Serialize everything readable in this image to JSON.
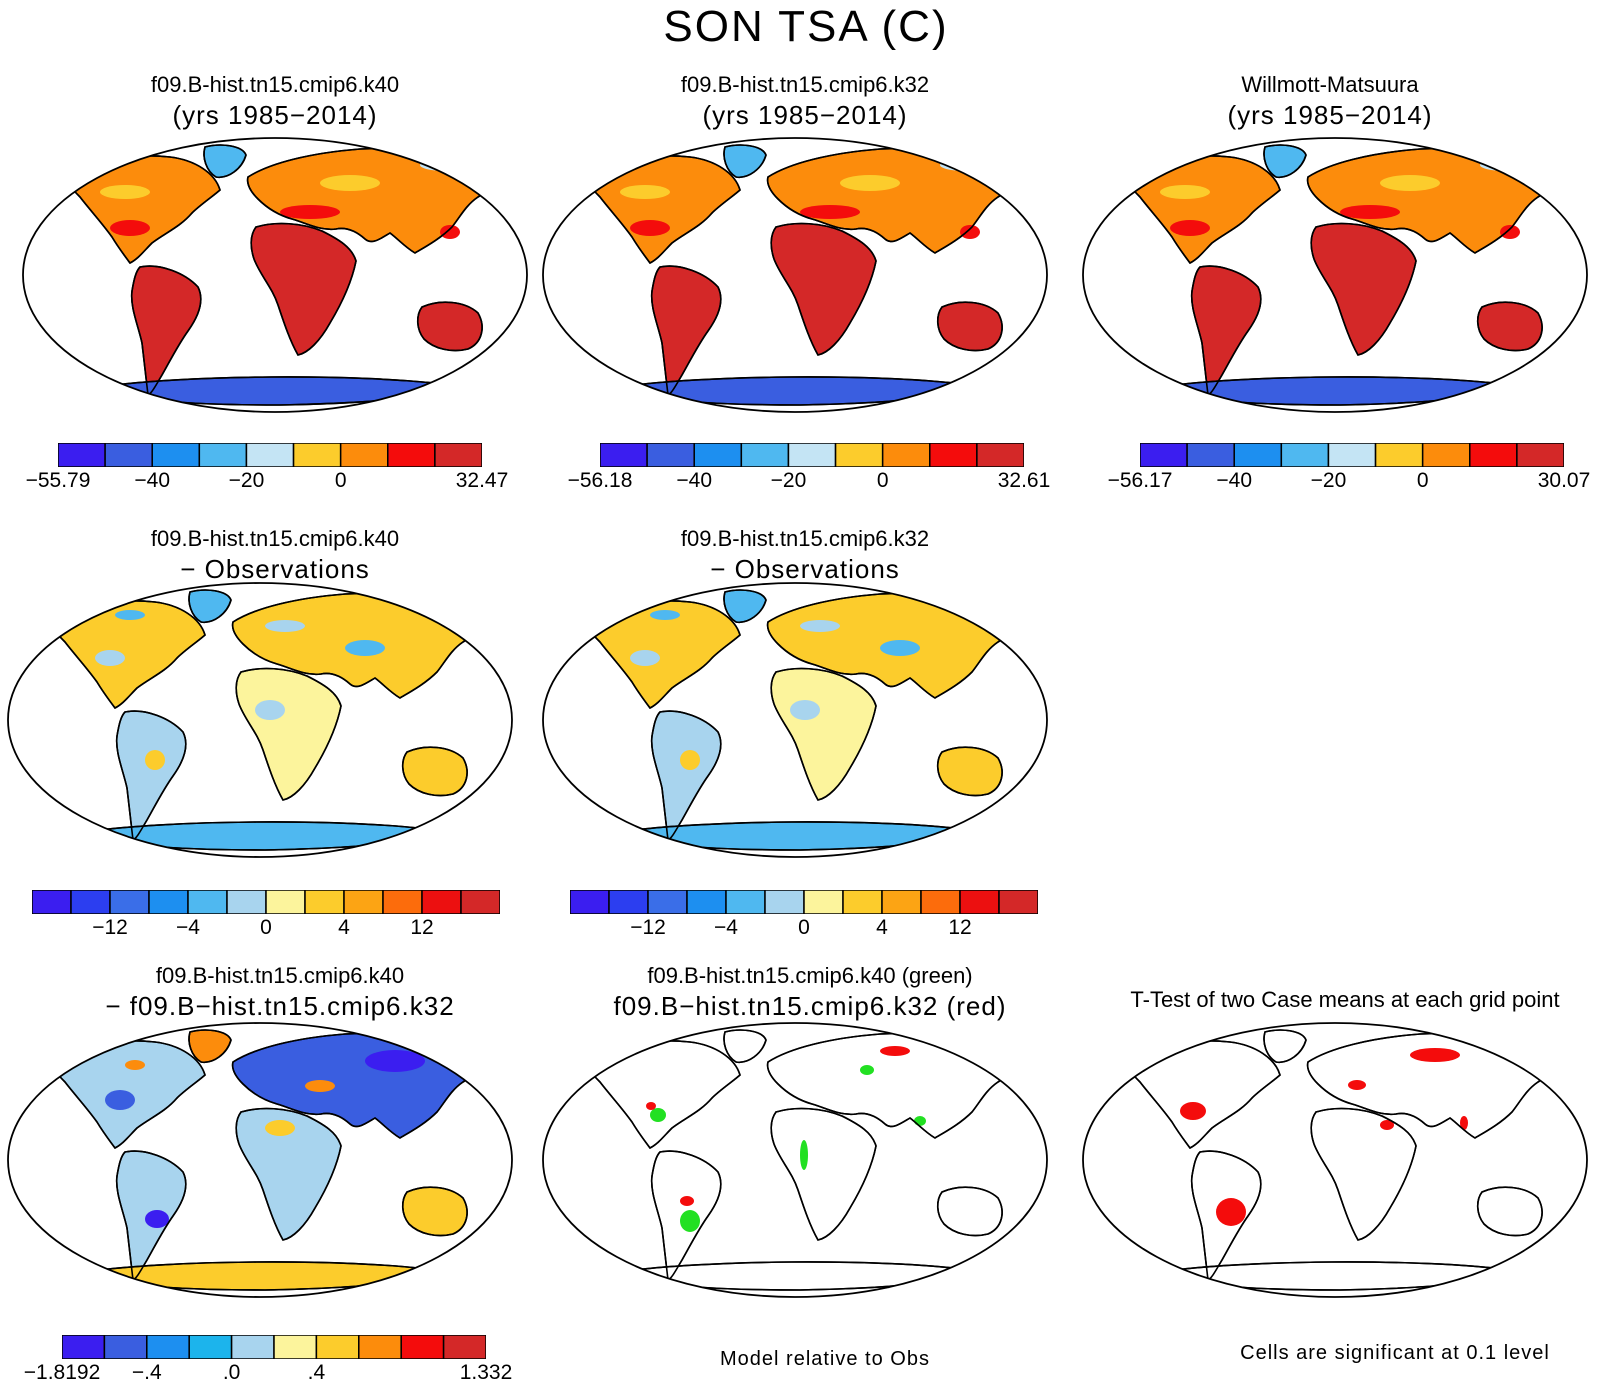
{
  "title": "SON TSA (C)",
  "panels": [
    {
      "id": "p1",
      "line1": "f09.B-hist.tn15.cmip6.k40",
      "line2": "(yrs 1985−2014)",
      "kind": "abs"
    },
    {
      "id": "p2",
      "line1": "f09.B-hist.tn15.cmip6.k32",
      "line2": "(yrs 1985−2014)",
      "kind": "abs"
    },
    {
      "id": "p3",
      "line1": "Willmott-Matsuura",
      "line2": "(yrs 1985−2014)",
      "kind": "abs"
    },
    {
      "id": "p4",
      "line1": "f09.B-hist.tn15.cmip6.k40",
      "line2": "− Observations",
      "kind": "diff"
    },
    {
      "id": "p5",
      "line1": "f09.B-hist.tn15.cmip6.k32",
      "line2": "− Observations",
      "kind": "diff"
    },
    {
      "id": "p6",
      "line1": "f09.B-hist.tn15.cmip6.k40",
      "line2": "− f09.B−hist.tn15.cmip6.k32",
      "kind": "casediff"
    },
    {
      "id": "p7",
      "line1": "f09.B-hist.tn15.cmip6.k40 (green)",
      "line2": "f09.B−hist.tn15.cmip6.k32 (red)",
      "kind": "sig2"
    },
    {
      "id": "p8",
      "line1": "T-Test of two Case means at each grid point",
      "line2": "",
      "kind": "sig1"
    }
  ],
  "colorbars": [
    {
      "id": "cb1",
      "labels": [
        "−55.79",
        "−40",
        "−20",
        "0",
        "32.47"
      ],
      "colors": [
        "#3b1ef0",
        "#3a5ee0",
        "#1d8ff0",
        "#4fb8f0",
        "#c4e4f4",
        "#fccc2c",
        "#fc8c0c",
        "#f40c0c",
        "#d42828"
      ]
    },
    {
      "id": "cb2",
      "labels": [
        "−56.18",
        "−40",
        "−20",
        "0",
        "32.61"
      ],
      "colors": [
        "#3b1ef0",
        "#3a5ee0",
        "#1d8ff0",
        "#4fb8f0",
        "#c4e4f4",
        "#fccc2c",
        "#fc8c0c",
        "#f40c0c",
        "#d42828"
      ]
    },
    {
      "id": "cb3",
      "labels": [
        "−56.17",
        "−40",
        "−20",
        "0",
        "30.07"
      ],
      "colors": [
        "#3b1ef0",
        "#3a5ee0",
        "#1d8ff0",
        "#4fb8f0",
        "#c4e4f4",
        "#fccc2c",
        "#fc8c0c",
        "#f40c0c",
        "#d42828"
      ]
    },
    {
      "id": "cb4",
      "labels": [
        "−12",
        "−4",
        "0",
        "4",
        "12"
      ],
      "colors": [
        "#3b1ef0",
        "#2c3ef0",
        "#3a6ee8",
        "#1d8ff0",
        "#4fb8f0",
        "#a8d4ee",
        "#fcf49c",
        "#fccc2c",
        "#fca414",
        "#fc6c0c",
        "#ec1010",
        "#d42828"
      ]
    },
    {
      "id": "cb5",
      "labels": [
        "−12",
        "−4",
        "0",
        "4",
        "12"
      ],
      "colors": [
        "#3b1ef0",
        "#2c3ef0",
        "#3a6ee8",
        "#1d8ff0",
        "#4fb8f0",
        "#a8d4ee",
        "#fcf49c",
        "#fccc2c",
        "#fca414",
        "#fc6c0c",
        "#ec1010",
        "#d42828"
      ]
    },
    {
      "id": "cb6",
      "labels": [
        "−1.8192",
        "−.4",
        ".0",
        ".4",
        "1.332"
      ],
      "colors": [
        "#3b1ef0",
        "#3a5ee0",
        "#1d8ff0",
        "#1cb4ec",
        "#a8d4ee",
        "#fcf49c",
        "#fccc2c",
        "#fc8c0c",
        "#f40c0c",
        "#d42828"
      ]
    }
  ],
  "footers": {
    "model_relative": "Model relative to Obs",
    "significance": "Cells are significant at 0.1 level"
  },
  "colors": {
    "land_warm": "#d42828",
    "land_mid": "#fc8c0c",
    "land_cold": "#3a5ee0",
    "sig_red": "#f40c0c",
    "sig_green": "#22e022"
  }
}
